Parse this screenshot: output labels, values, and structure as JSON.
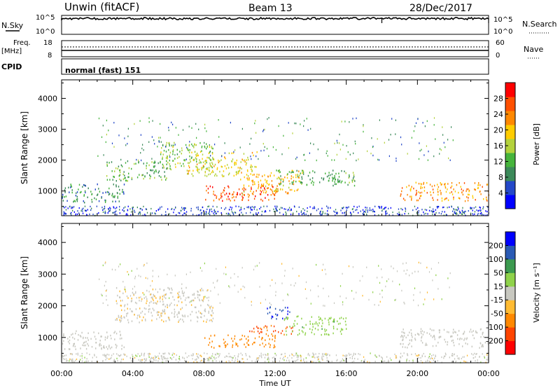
{
  "header": {
    "station": "Unwin (fitACF)",
    "beam": "Beam 13",
    "date": "28/Dec/2017"
  },
  "summary": {
    "nsky_label": "N.Sky",
    "nsky_ticks": [
      "10^5",
      "10^0"
    ],
    "nsearch_label": "N.Search",
    "freq_label": "Freq.",
    "freq_unit": "[MHz]",
    "freq_ticks": [
      "18",
      "8"
    ],
    "nave_ticks": [
      "60",
      "0"
    ],
    "nave_label": "Nave",
    "cpid_label": "CPID",
    "cpid_value": "normal (fast) 151"
  },
  "chart_data": [
    {
      "type": "heatmap",
      "name": "power",
      "ylabel": "Slant Range [km]",
      "yticks": [
        "4000",
        "3000",
        "2000",
        "1000"
      ],
      "ylim": [
        200,
        4600
      ],
      "xlim": [
        0,
        24
      ],
      "colorbar": {
        "label": "Power [dB]",
        "ticks": [
          "28",
          "24",
          "20",
          "16",
          "12",
          "8",
          "4"
        ],
        "colors": [
          "#0000ff",
          "#2448c8",
          "#3c8a5a",
          "#46b43c",
          "#b4d23c",
          "#ffcc00",
          "#ff8800",
          "#ff5000",
          "#ff0000"
        ]
      },
      "regions": [
        {
          "t0": 0.0,
          "t1": 3.5,
          "r0": 650,
          "r1": 1250,
          "level": 9
        },
        {
          "t0": 2.5,
          "t1": 6.0,
          "r0": 1350,
          "r1": 2000,
          "level": 12
        },
        {
          "t0": 5.5,
          "t1": 8.5,
          "r0": 1700,
          "r1": 2600,
          "level": 14
        },
        {
          "t0": 7.0,
          "t1": 11.0,
          "r0": 1500,
          "r1": 2300,
          "level": 18
        },
        {
          "t0": 8.0,
          "t1": 12.0,
          "r0": 700,
          "r1": 1200,
          "level": 26
        },
        {
          "t0": 10.0,
          "t1": 13.5,
          "r0": 900,
          "r1": 1700,
          "level": 20
        },
        {
          "t0": 12.0,
          "t1": 16.5,
          "r0": 1200,
          "r1": 1700,
          "level": 11
        },
        {
          "t0": 19.0,
          "t1": 24.0,
          "r0": 700,
          "r1": 1300,
          "level": 22
        }
      ]
    },
    {
      "type": "heatmap",
      "name": "velocity",
      "ylabel": "Slant Range [km]",
      "yticks": [
        "4000",
        "3000",
        "2000",
        "1000"
      ],
      "ylim": [
        200,
        4600
      ],
      "xlim": [
        0,
        24
      ],
      "xticks": [
        "00:00",
        "04:00",
        "08:00",
        "12:00",
        "16:00",
        "20:00",
        "00:00"
      ],
      "xlabel": "Time UT",
      "colorbar": {
        "label": "Velocity [m s⁻¹]",
        "ticks": [
          "200",
          "100",
          "50",
          "15",
          "-15",
          "-50",
          "-100",
          "-200"
        ],
        "colors": [
          "#ff0000",
          "#ff4400",
          "#ff8800",
          "#ffbb33",
          "#c8c8c0",
          "#8fd24a",
          "#3c9a50",
          "#2a5ab4",
          "#0000ff"
        ]
      },
      "regions": [
        {
          "t0": 0.0,
          "t1": 3.5,
          "r0": 650,
          "r1": 1250,
          "level": -5
        },
        {
          "t0": 3.0,
          "t1": 8.5,
          "r0": 1500,
          "r1": 2600,
          "level": -10
        },
        {
          "t0": 8.0,
          "t1": 12.0,
          "r0": 700,
          "r1": 1100,
          "level": -70
        },
        {
          "t0": 10.5,
          "t1": 13.0,
          "r0": 1100,
          "r1": 1400,
          "level": -120
        },
        {
          "t0": 11.5,
          "t1": 12.8,
          "r0": 1600,
          "r1": 2000,
          "level": 180
        },
        {
          "t0": 12.5,
          "t1": 16.0,
          "r0": 1100,
          "r1": 1700,
          "level": 40
        },
        {
          "t0": 19.0,
          "t1": 24.0,
          "r0": 700,
          "r1": 1300,
          "level": 0
        }
      ]
    }
  ]
}
